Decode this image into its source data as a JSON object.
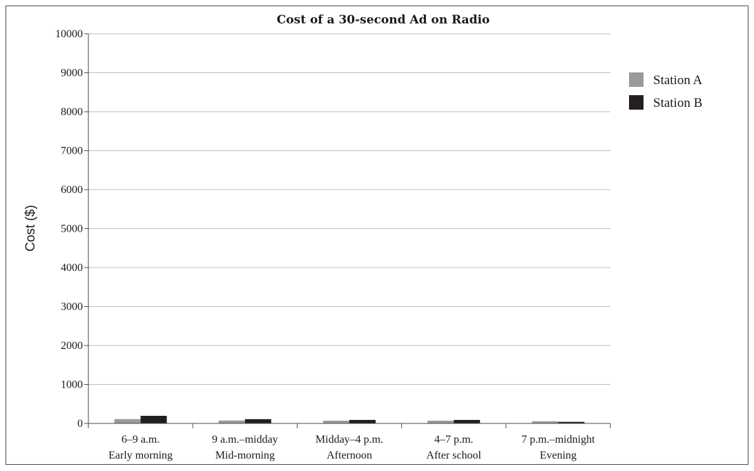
{
  "chart_data": {
    "type": "bar",
    "title": "Cost of a 30-second Ad on Radio",
    "ylabel": "Cost ($)",
    "xlabel": "",
    "ylim": [
      0,
      10000
    ],
    "yticks": [
      0,
      1000,
      2000,
      3000,
      4000,
      5000,
      6000,
      7000,
      8000,
      9000,
      10000
    ],
    "grid": true,
    "legend_position": "right",
    "categories": [
      [
        "6–9 a.m.",
        "Early morning"
      ],
      [
        "9 a.m.–midday",
        "Mid-morning"
      ],
      [
        "Midday–4 p.m.",
        "Afternoon"
      ],
      [
        "4–7 p.m.",
        "After school"
      ],
      [
        "7 p.m.–midnight",
        "Evening"
      ]
    ],
    "series": [
      {
        "name": "Station A",
        "color": "#9a9a9c",
        "values": [
          110,
          75,
          70,
          70,
          55
        ]
      },
      {
        "name": "Station B",
        "color": "#231f20",
        "values": [
          195,
          110,
          90,
          90,
          40
        ]
      }
    ]
  }
}
